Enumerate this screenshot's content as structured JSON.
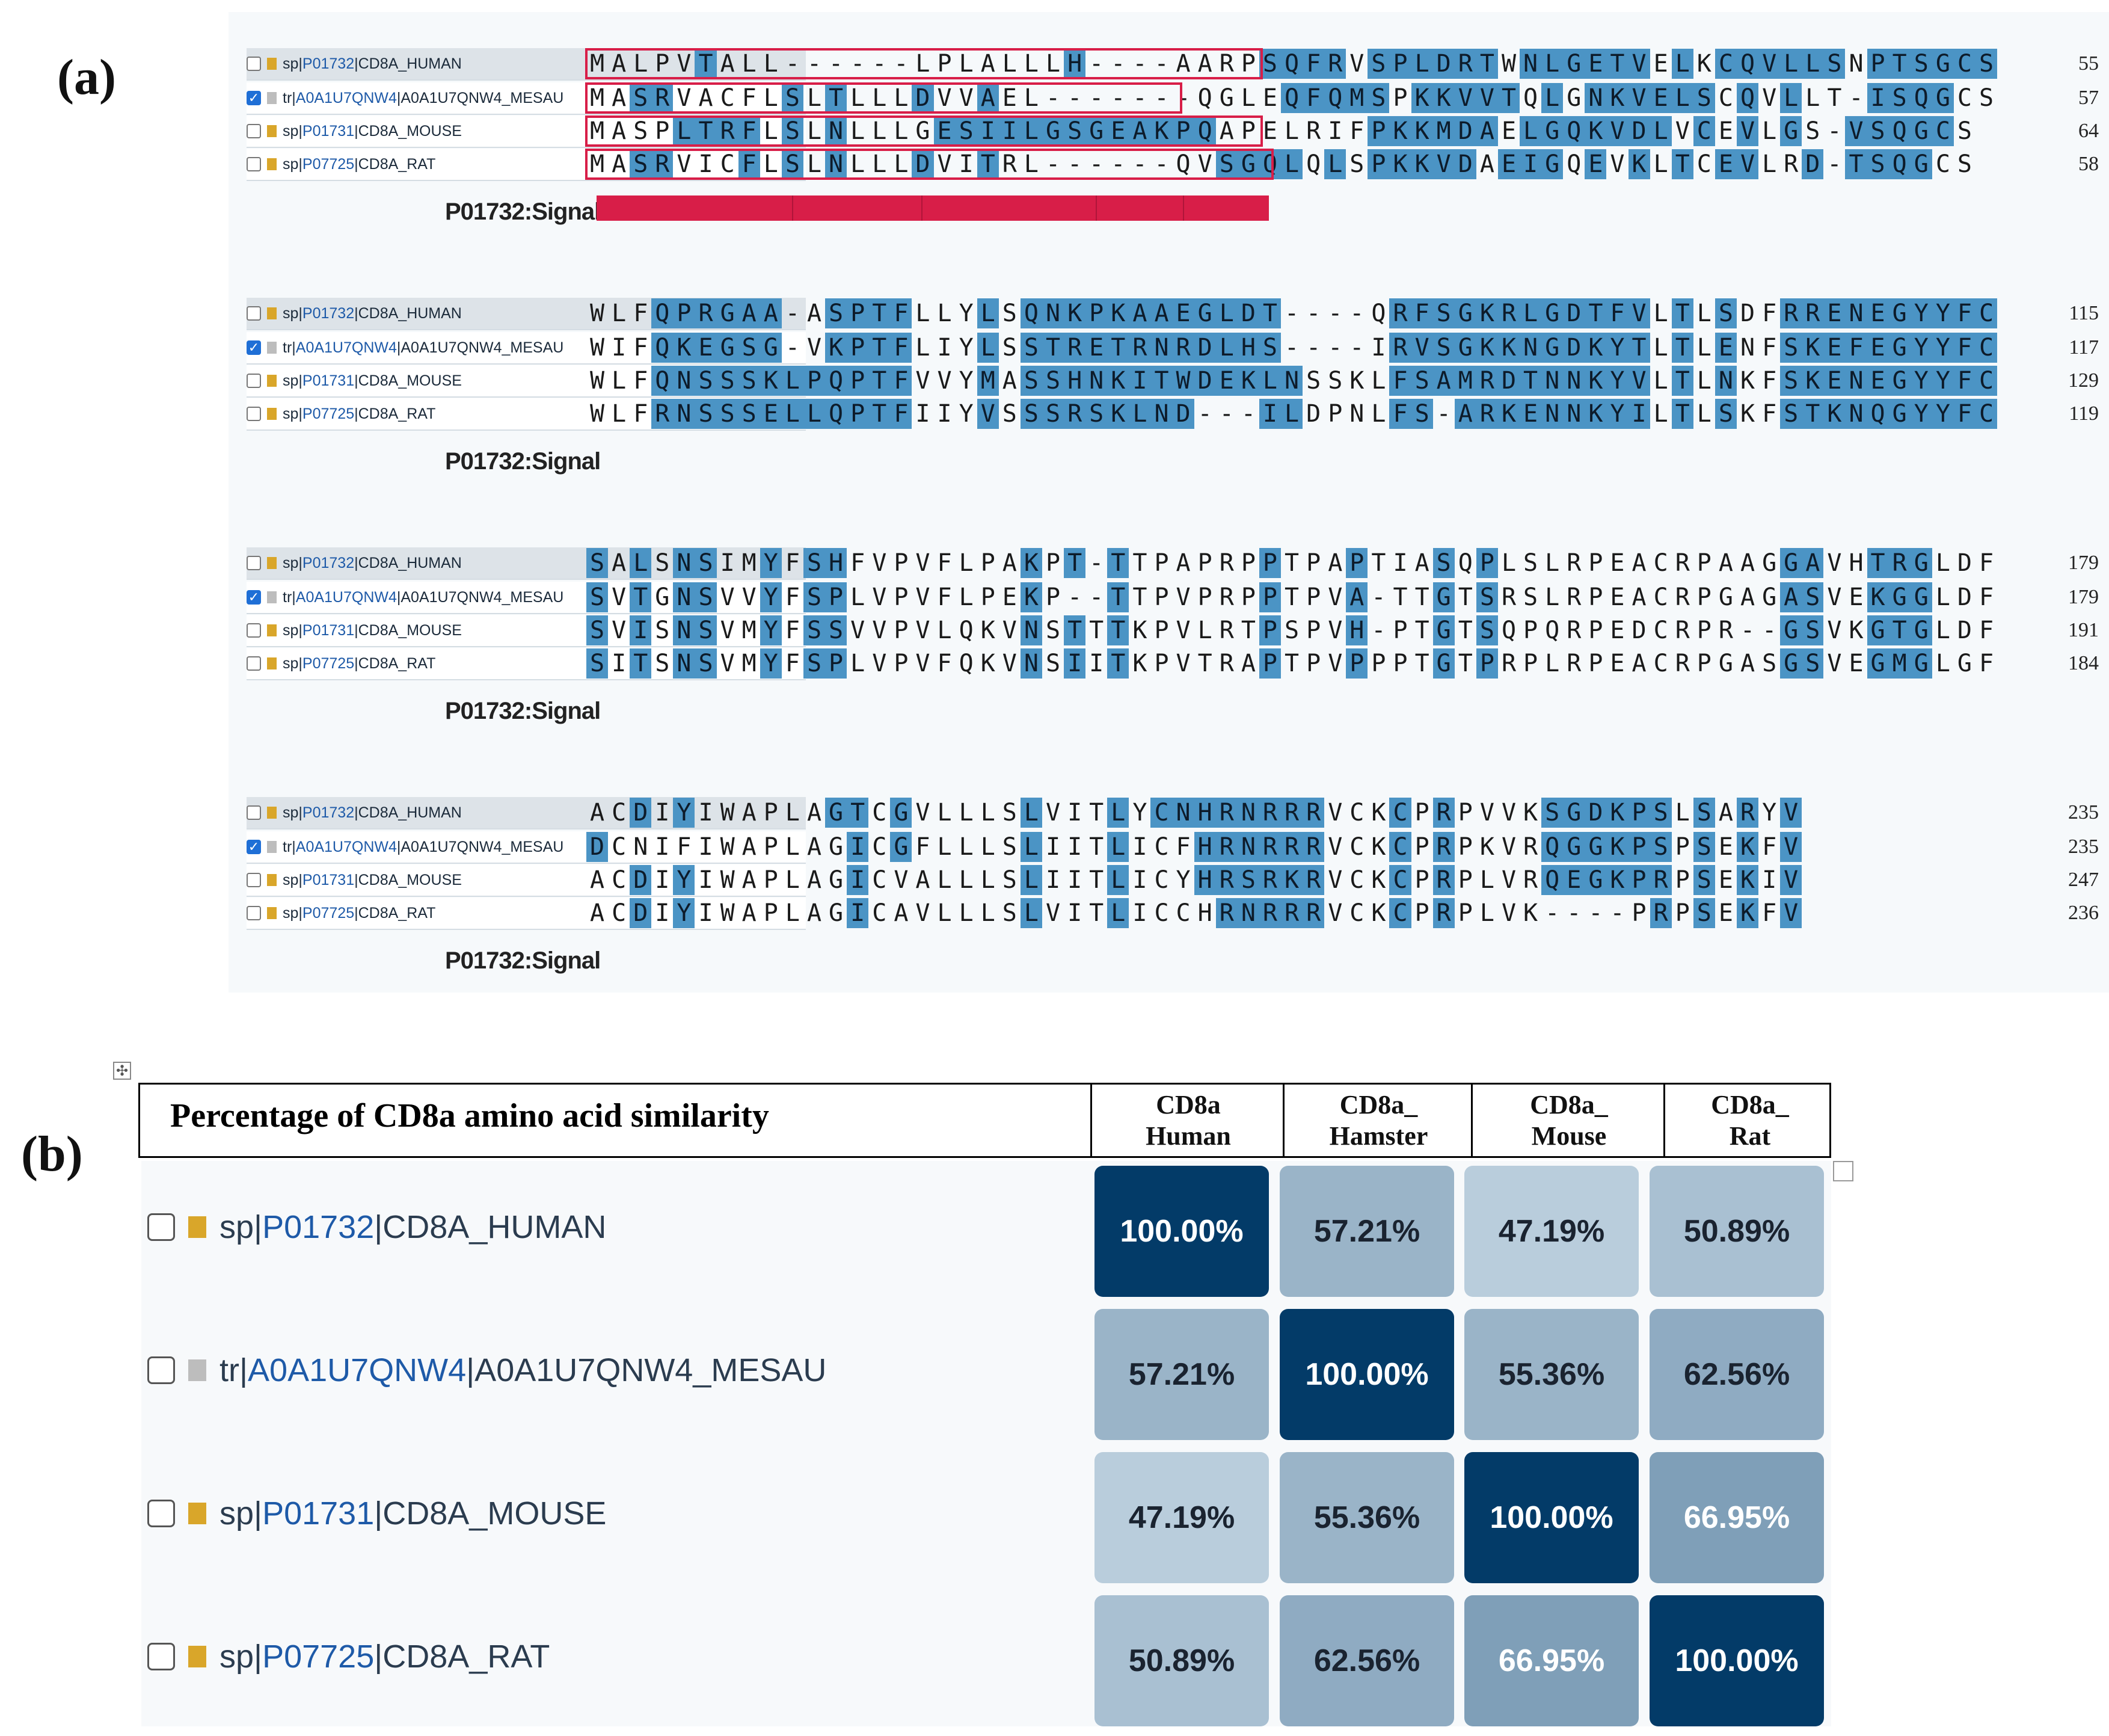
{
  "panel_labels": {
    "a": "(a)",
    "b": "(b)"
  },
  "alignment": {
    "signal_label": "P01732:Signal",
    "colors": {
      "highlight": "#4b94c5",
      "signal": "#d81e48"
    },
    "rows": [
      {
        "prefix": "sp|",
        "accession": "P01732",
        "suffix": "|CD8A_HUMAN",
        "checked": false,
        "icon": "gold"
      },
      {
        "prefix": "tr|",
        "accession": "A0A1U7QNW4",
        "suffix": "|A0A1U7QNW4_MESAU",
        "checked": true,
        "icon": "grey"
      },
      {
        "prefix": "sp|",
        "accession": "P01731",
        "suffix": "|CD8A_MOUSE",
        "checked": false,
        "icon": "gold"
      },
      {
        "prefix": "sp|",
        "accession": "P07725",
        "suffix": "|CD8A_RAT",
        "checked": false,
        "icon": "gold"
      }
    ],
    "blocks": [
      {
        "seqs": [
          "MALPVTALL------LPLALLLH----AARPSQFRVSPLDRTWNLGETVELKCQVLLSNPTSGCS",
          "MASRVACFLSLTLLLDVVAEL-------QGLEQFQMSPKKVVTQLGNKVELSCQVLLT-ISQGCS",
          "MASPLTRFLSLNLLLGESIILGSGEAKPQAPELRIFPKKMDAELGQKVDLVCEVLGS-VSQGCS",
          "MASRVICFLSLNLLLDVITRL------QVSGQLQLSPKKVDAEIGQEVKLTCEVLRD-TSQGCS"
        ],
        "hl": [
          "000001000000000000000010000000011110111111011111101011111101111111",
          "001100000101000100100000000000001111101111101011111101010001111",
          "000011110101000011111111111110000000111111011111110101010011111",
          "00110001010100010010000000000111101011111011101010101100111111"
        ],
        "ends": [
          "55",
          "57",
          "64",
          "58"
        ]
      },
      {
        "seqs": [
          "WLFQPRGAA-ASPTFLLYLSQNKPKAAEGLDT----QRFSGKRLGDTFVLTLSDFRRENEGYYFC",
          "WIFQKEGSG-VKPTFLIYLSSTRETRNRDLHS----IRVSGKKNGDKYTLTLENFSKEFEGYYFC",
          "WLFQNSSSKLPQPTFVVYMASSHNKITWDEKLNSSKLFSAMRDTNNKYVLTLNKFSKENEGYYFC",
          "WLFRNSSSELLQPTFIIYVSSSRSKLND---ILDPNLFS-ARKENNKYILTLSKFSTKNQGYYFC"
        ],
        "hl": [
          "0001111111011110001011111111111110000111111111111010100111111111100",
          "0001111111011110001011111111111110000111111111111010100111111111100",
          "0001111111111110001011111111111110000111111111111010100111111111100",
          "0001111111111110001011111111111110000111111111111010100111111111100"
        ],
        "ends": [
          "115",
          "117",
          "129",
          "119"
        ]
      },
      {
        "seqs": [
          "SALSNSIMYFSHFVPVFLPAKPT-TTPAPRPPTPAPTIASQPLSLRPEACRPAAGGAVHTRGLDF",
          "SVTGNSVVYFSPLVPVFLPEKP--TTPVPRPPTPVA-TTGTSRSLRPEACRPGAGASVEKGGLDF",
          "SVISNSVMYFSSVVPVLQKVNSTTTKPVLRTPSPVH-PTGTSQPQRPEDCRPR--GSVKGTGLDF",
          "SITSNSVMYFSPLVPVFQKVNSIITKPVTRAPTPVPPPTGTPRPLRPEACRPGASGSVEGMGLGF"
        ],
        "hl": [
          "1010110010110000000010101000000100010001010000000000000110011100000",
          "1010110010110000000010101000000100010001010000000000000110011100000",
          "1010110010110000000010101000000100010001010000000000000110011100000",
          "1010110010110000000010101000000100010001010000000000000110011100000"
        ],
        "ends": [
          "179",
          "179",
          "191",
          "184"
        ]
      },
      {
        "seqs": [
          "ACDIYIWAPLAGTCGVLLLSLVITLYCNHRNRRRVCKCPRPVVKSGDKPSLSARYV",
          "DCNIFIWAPLAGICGFLLLSLIITLICFHRNRRRVCKCPRPKVRQGGKPSPSEKFV",
          "ACDIYIWAPLAGICVALLLSLIITLICYHRSRKRVCKCPRPLVRQEGKPRPSEKIV",
          "ACDIYIWAPLAGICAVLLLSLVITLICCHRNRRRVCKCPRPLVK----PRPSEKFV"
        ],
        "hl": [
          "00101000000110100000100010111111110001010000111111010101110",
          "10000000000010100000100010001111110001010000111111010101110",
          "00101000000010000000100010001111110001010000111111010101110",
          "00101000000010000000100010000111110001010000100001010101110"
        ],
        "ends": [
          "235",
          "235",
          "247",
          "236"
        ]
      }
    ]
  },
  "similarity": {
    "title": "Percentage of CD8a amino acid similarity",
    "columns": [
      "CD8a\nHuman",
      "CD8a_\nHamster",
      "CD8a_\nMouse",
      "CD8a_\nRat"
    ],
    "rows": [
      {
        "prefix": "sp|",
        "accession": "P01732",
        "suffix": "|CD8A_HUMAN",
        "icon": "gold",
        "values": [
          "100.00%",
          "57.21%",
          "47.19%",
          "50.89%"
        ]
      },
      {
        "prefix": "tr|",
        "accession": "A0A1U7QNW4",
        "suffix": "|A0A1U7QNW4_MESAU",
        "icon": "grey",
        "values": [
          "57.21%",
          "100.00%",
          "55.36%",
          "62.56%"
        ]
      },
      {
        "prefix": "sp|",
        "accession": "P01731",
        "suffix": "|CD8A_MOUSE",
        "icon": "gold",
        "values": [
          "47.19%",
          "55.36%",
          "100.00%",
          "66.95%"
        ]
      },
      {
        "prefix": "sp|",
        "accession": "P07725",
        "suffix": "|CD8A_RAT",
        "icon": "gold",
        "values": [
          "50.89%",
          "62.56%",
          "66.95%",
          "100.00%"
        ]
      }
    ],
    "numeric": [
      [
        100.0,
        57.21,
        47.19,
        50.89
      ],
      [
        57.21,
        100.0,
        55.36,
        62.56
      ],
      [
        47.19,
        55.36,
        100.0,
        66.95
      ],
      [
        50.89,
        62.56,
        66.95,
        100.0
      ]
    ]
  }
}
